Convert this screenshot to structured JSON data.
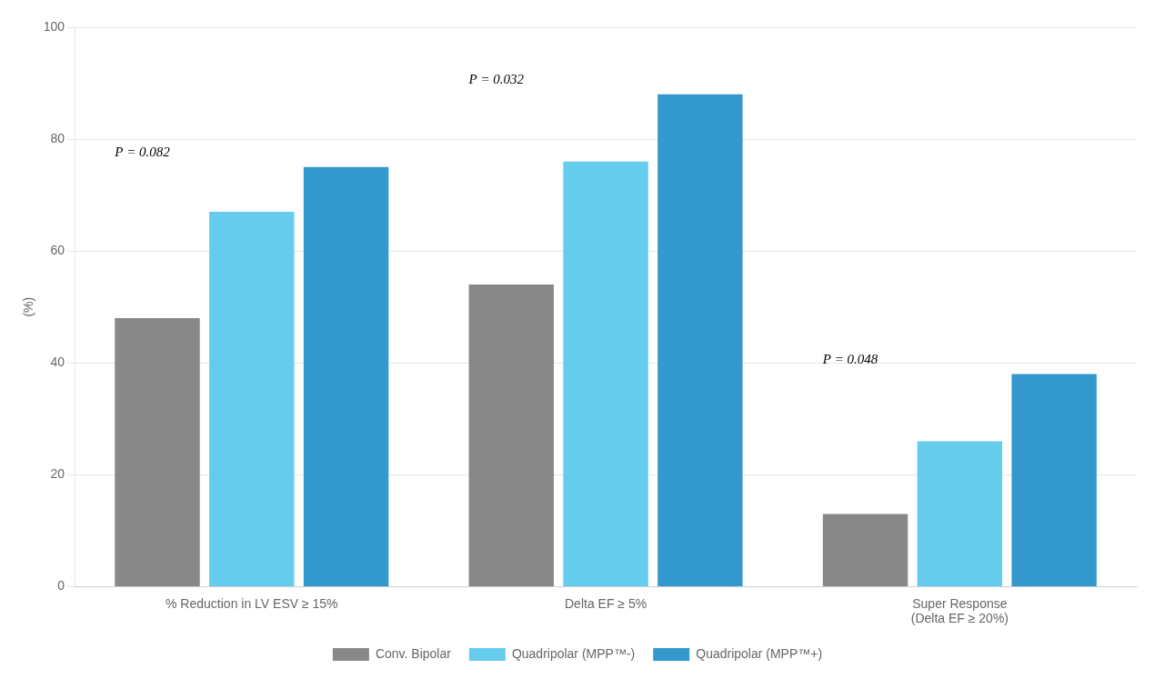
{
  "chart_data": {
    "type": "bar",
    "categories": [
      "% Reduction in LV ESV ≥ 15%",
      "Delta EF ≥ 5%",
      "Super Response\n(Delta EF ≥ 20%)"
    ],
    "series": [
      {
        "name": "Conv. Bipolar",
        "color": "#888888",
        "values": [
          48,
          54,
          13
        ]
      },
      {
        "name": "Quadripolar (MPP™-)",
        "color": "#66ccee",
        "values": [
          67,
          76,
          26
        ]
      },
      {
        "name": "Quadripolar (MPP™+)",
        "color": "#3399cc",
        "values": [
          75,
          88,
          38
        ]
      }
    ],
    "ylabel": "(%)",
    "annotations": [
      {
        "text": "P = 0.082"
      },
      {
        "text": "P = 0.032"
      },
      {
        "text": "P = 0.048"
      }
    ],
    "ylim": [
      0,
      100
    ],
    "yticks": [
      0,
      20,
      40,
      60,
      80,
      100
    ],
    "grid": true,
    "legend": "bottom"
  }
}
